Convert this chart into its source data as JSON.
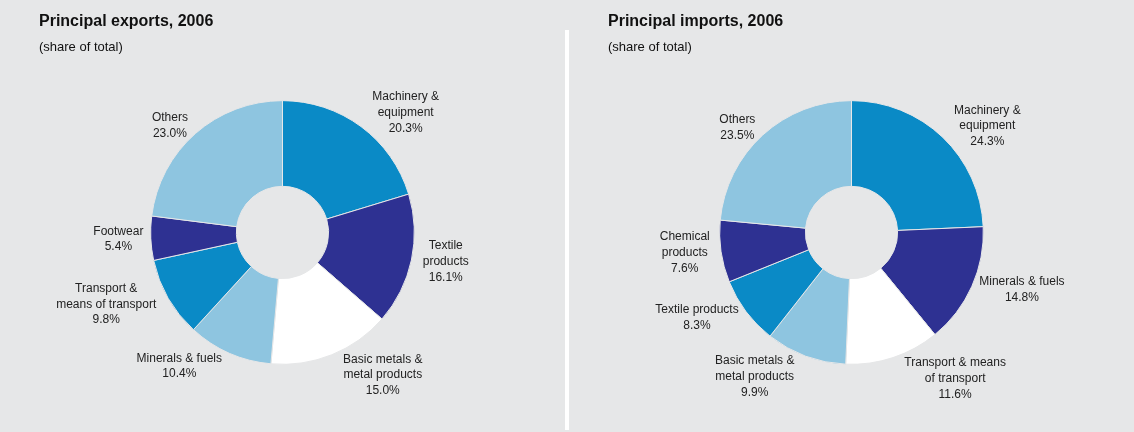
{
  "chart_data": [
    {
      "type": "donut",
      "title": "Principal exports, 2006",
      "subtitle": "(share of total)",
      "categories": [
        "Machinery &\nequipment",
        "Textile\nproducts",
        "Basic metals &\nmetal products",
        "Minerals & fuels",
        "Transport &\nmeans of transport",
        "Footwear",
        "Others"
      ],
      "values": [
        20.3,
        16.1,
        15.0,
        10.4,
        9.8,
        5.4,
        23.0
      ],
      "value_labels": [
        "20.3%",
        "16.1%",
        "15.0%",
        "10.4%",
        "9.8%",
        "5.4%",
        "23.0%"
      ],
      "colors": [
        "#0a8ac6",
        "#2e3192",
        "#ffffff",
        "#8ec5e0",
        "#0a8ac6",
        "#2e3192",
        "#8ec5e0"
      ],
      "legend": false
    },
    {
      "type": "donut",
      "title": "Principal imports, 2006",
      "subtitle": "(share of total)",
      "categories": [
        "Machinery &\nequipment",
        "Minerals & fuels",
        "Transport & means\nof transport",
        "Basic metals &\nmetal products",
        "Textile products",
        "Chemical\nproducts",
        "Others"
      ],
      "values": [
        24.3,
        14.8,
        11.6,
        9.9,
        8.3,
        7.6,
        23.5
      ],
      "value_labels": [
        "24.3%",
        "14.8%",
        "11.6%",
        "9.9%",
        "8.3%",
        "7.6%",
        "23.5%"
      ],
      "colors": [
        "#0a8ac6",
        "#2e3192",
        "#ffffff",
        "#8ec5e0",
        "#0a8ac6",
        "#2e3192",
        "#8ec5e0"
      ],
      "legend": false
    }
  ]
}
